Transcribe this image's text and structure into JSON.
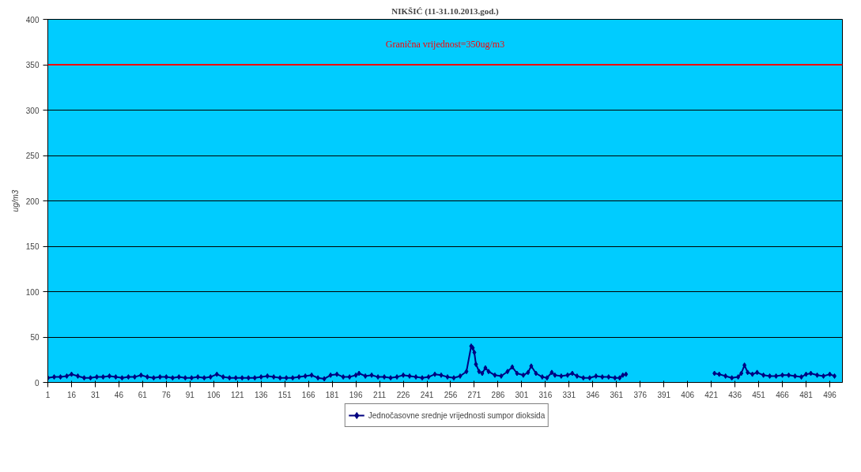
{
  "chart_data": {
    "type": "line",
    "title": "NIKŠIĆ (11-31.10.2013.god.)",
    "ylabel": "ug/m3",
    "x": [
      1,
      5,
      9,
      13,
      16,
      20,
      24,
      28,
      32,
      36,
      40,
      44,
      48,
      52,
      56,
      60,
      64,
      68,
      72,
      76,
      80,
      84,
      88,
      92,
      96,
      100,
      104,
      108,
      112,
      116,
      120,
      124,
      128,
      132,
      136,
      140,
      144,
      148,
      152,
      156,
      160,
      164,
      168,
      172,
      176,
      180,
      184,
      188,
      192,
      196,
      198,
      202,
      206,
      210,
      214,
      218,
      222,
      226,
      230,
      234,
      238,
      242,
      246,
      250,
      254,
      258,
      262,
      266,
      269,
      270,
      271,
      272,
      274,
      276,
      278,
      280,
      284,
      288,
      292,
      295,
      298,
      302,
      305,
      307,
      310,
      314,
      317,
      320,
      322,
      326,
      330,
      333,
      336,
      340,
      344,
      348,
      352,
      356,
      360,
      363,
      365,
      367,
      368,
      423,
      426,
      430,
      434,
      438,
      440,
      442,
      444,
      447,
      450,
      454,
      458,
      462,
      466,
      470,
      474,
      478,
      481,
      484,
      488,
      492,
      496,
      499
    ],
    "series": [
      {
        "name": "Jednočasovne srednje vrijednosti sumpor dioksida",
        "color": "#000080",
        "values": [
          5,
          6,
          6,
          7,
          9,
          7,
          5,
          5,
          6,
          6,
          7,
          6,
          5,
          6,
          6,
          8,
          6,
          5,
          6,
          6,
          5,
          6,
          5,
          5,
          6,
          5,
          6,
          9,
          6,
          5,
          5,
          5,
          5,
          5,
          6,
          7,
          6,
          5,
          5,
          5,
          6,
          7,
          8,
          5,
          4,
          8,
          9,
          6,
          6,
          8,
          10,
          7,
          8,
          6,
          6,
          5,
          6,
          8,
          7,
          6,
          5,
          6,
          9,
          8,
          6,
          5,
          7,
          12,
          40,
          38,
          33,
          20,
          12,
          10,
          16,
          12,
          8,
          7,
          12,
          17,
          10,
          8,
          11,
          18,
          10,
          6,
          5,
          11,
          8,
          7,
          8,
          10,
          7,
          5,
          5,
          7,
          6,
          6,
          5,
          5,
          8,
          9,
          null,
          10,
          9,
          7,
          5,
          6,
          10,
          19,
          11,
          9,
          11,
          8,
          7,
          7,
          8,
          8,
          7,
          6,
          9,
          10,
          8,
          7,
          9,
          7
        ]
      }
    ],
    "xlim": [
      1,
      504
    ],
    "xticks": [
      1,
      16,
      31,
      46,
      61,
      76,
      91,
      106,
      121,
      136,
      151,
      166,
      181,
      196,
      211,
      226,
      241,
      256,
      271,
      286,
      301,
      316,
      331,
      346,
      361,
      376,
      391,
      406,
      421,
      436,
      451,
      466,
      481,
      496
    ],
    "ylim": [
      0,
      400
    ],
    "yticks": [
      0,
      50,
      100,
      150,
      200,
      250,
      300,
      350,
      400
    ],
    "ref_lines": [
      {
        "axis": "y",
        "value": 350,
        "label": "Granična vrijednost=350ug/m3",
        "color": "#ff0000"
      }
    ],
    "grid": "y",
    "legend": "bottom",
    "marker": "diamond",
    "line_style": "solid"
  }
}
